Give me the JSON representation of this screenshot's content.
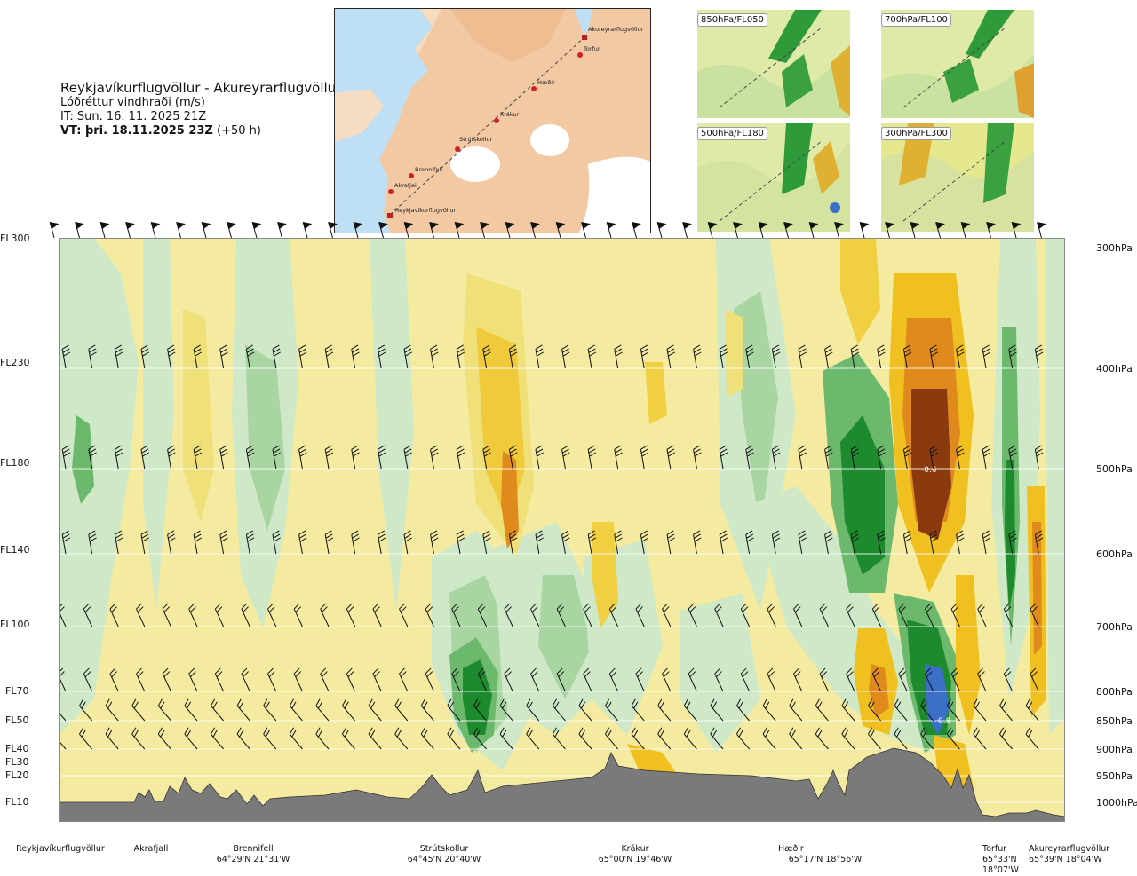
{
  "header": {
    "route": "Reykjavíkurflugvöllur - Akureyrarflugvöllur",
    "variable": "Lóðréttur vindhraði (m/s)",
    "init_time": "IT: Sun. 16. 11. 2025 21Z",
    "valid_time_bold": "VT: þri. 18.11.2025 23Z",
    "valid_time_offset": "(+50 h)"
  },
  "route_map": {
    "points": [
      {
        "label": "Akureyrarflugvöllur",
        "kind": "airport"
      },
      {
        "label": "Torfur",
        "kind": "waypoint"
      },
      {
        "label": "Hæðir",
        "kind": "waypoint"
      },
      {
        "label": "Krákur",
        "kind": "waypoint"
      },
      {
        "label": "Strútskollur",
        "kind": "waypoint"
      },
      {
        "label": "Brennifell",
        "kind": "waypoint"
      },
      {
        "label": "Akrafjall",
        "kind": "waypoint"
      },
      {
        "label": "Reykjavíkurflugvöllur",
        "kind": "airport"
      }
    ]
  },
  "thumbnails": [
    {
      "label": "850hPa/FL050"
    },
    {
      "label": "700hPa/FL100"
    },
    {
      "label": "500hPa/FL180"
    },
    {
      "label": "300hPa/FL300"
    }
  ],
  "flight_levels": [
    "FL300",
    "FL230",
    "FL180",
    "FL140",
    "FL100",
    "FL70",
    "FL50",
    "FL40",
    "FL30",
    "FL20",
    "FL10"
  ],
  "pressure_levels": [
    "300hPa",
    "400hPa",
    "500hPa",
    "600hPa",
    "700hPa",
    "800hPa",
    "850hPa",
    "900hPa",
    "950hPa",
    "1000hPa"
  ],
  "contour_labels": [
    "-0.6",
    "0.8"
  ],
  "stations": [
    {
      "name": "Reykjavíkurflugvöllur",
      "coords": ""
    },
    {
      "name": "Akrafjall",
      "coords": ""
    },
    {
      "name": "Brennifell",
      "coords": "64°29'N 21°31'W"
    },
    {
      "name": "Strútskollur",
      "coords": "64°45'N 20°40'W"
    },
    {
      "name": "Krákur",
      "coords": "65°00'N 19°46'W"
    },
    {
      "name": "Hæðir",
      "coords": "65°17'N 18°56'W"
    },
    {
      "name": "Torfur",
      "coords": "65°33'N 18°07'W"
    },
    {
      "name": "Akureyrarflugvöllur",
      "coords": "65°39'N 18°04'W"
    }
  ],
  "colors": {
    "strong_down": "#8b3a10",
    "down_orange": "#e08a1e",
    "down_yellow": "#f0c020",
    "weak_down": "#f5eba0",
    "weak_up": "#cfe8c8",
    "up_green": "#6cb86c",
    "strong_up_green": "#1d8a2e",
    "strongest_up": "#3b6fc8",
    "terrain": "#7a7a7a"
  }
}
